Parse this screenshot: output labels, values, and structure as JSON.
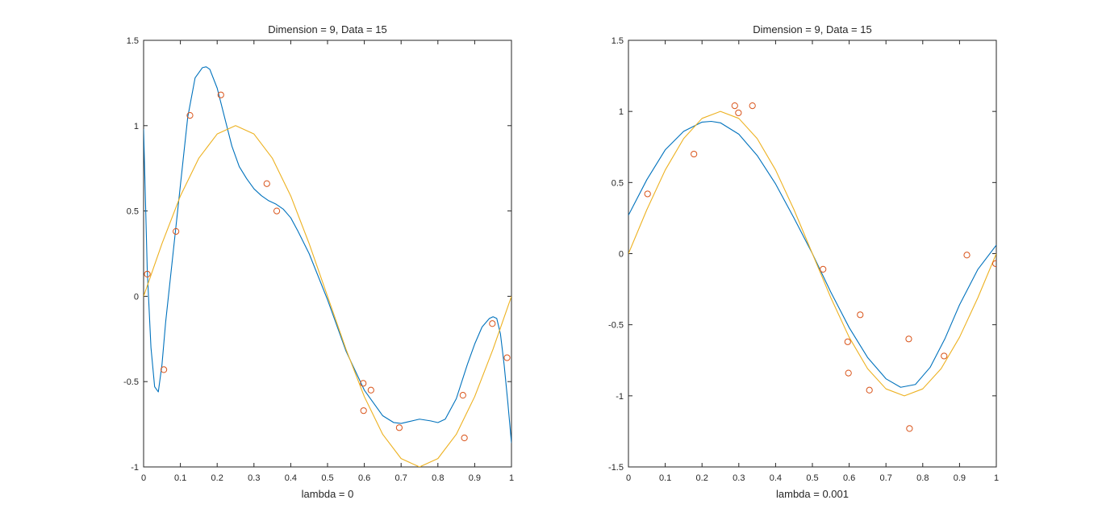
{
  "chart_data": [
    {
      "type": "line",
      "title": "Dimension = 9, Data = 15",
      "xlabel": "lambda = 0",
      "ylabel": "",
      "xlim": [
        0,
        1
      ],
      "ylim": [
        -1,
        1.5
      ],
      "xticks": [
        0,
        0.1,
        0.2,
        0.3,
        0.4,
        0.5,
        0.6,
        0.7,
        0.8,
        0.9,
        1
      ],
      "xtick_labels": [
        "0",
        "0.1",
        "0.2",
        "0.3",
        "0.4",
        "0.5",
        "0.6",
        "0.7",
        "0.8",
        "0.9",
        "1"
      ],
      "yticks": [
        -1,
        -0.5,
        0,
        0.5,
        1,
        1.5
      ],
      "ytick_labels": [
        "-1",
        "-0.5",
        "0",
        "0.5",
        "1",
        "1.5"
      ],
      "grid": false,
      "series": [
        {
          "kind": "line",
          "color": "#0072BD",
          "x": [
            0,
            0.01,
            0.02,
            0.03,
            0.04,
            0.05,
            0.06,
            0.08,
            0.1,
            0.12,
            0.14,
            0.16,
            0.17,
            0.18,
            0.2,
            0.22,
            0.24,
            0.26,
            0.28,
            0.3,
            0.32,
            0.34,
            0.36,
            0.38,
            0.4,
            0.42,
            0.45,
            0.5,
            0.55,
            0.6,
            0.65,
            0.68,
            0.7,
            0.72,
            0.75,
            0.78,
            0.8,
            0.82,
            0.85,
            0.88,
            0.9,
            0.92,
            0.94,
            0.95,
            0.96,
            0.97,
            0.98,
            0.99,
            1.0
          ],
          "y": [
            0.98,
            0.15,
            -0.3,
            -0.53,
            -0.56,
            -0.4,
            -0.15,
            0.25,
            0.65,
            1.05,
            1.28,
            1.34,
            1.345,
            1.33,
            1.22,
            1.05,
            0.88,
            0.76,
            0.69,
            0.63,
            0.59,
            0.56,
            0.54,
            0.51,
            0.46,
            0.38,
            0.25,
            -0.02,
            -0.32,
            -0.55,
            -0.7,
            -0.74,
            -0.745,
            -0.735,
            -0.72,
            -0.73,
            -0.74,
            -0.72,
            -0.6,
            -0.4,
            -0.28,
            -0.18,
            -0.13,
            -0.12,
            -0.13,
            -0.22,
            -0.4,
            -0.62,
            -0.86
          ]
        },
        {
          "kind": "line",
          "color": "#EDB120",
          "x": [
            0,
            0.05,
            0.1,
            0.15,
            0.2,
            0.25,
            0.3,
            0.35,
            0.4,
            0.45,
            0.5,
            0.55,
            0.6,
            0.65,
            0.7,
            0.75,
            0.8,
            0.85,
            0.9,
            0.95,
            1.0
          ],
          "y": [
            0,
            0.309,
            0.588,
            0.809,
            0.951,
            1.0,
            0.951,
            0.809,
            0.588,
            0.309,
            0,
            -0.309,
            -0.588,
            -0.809,
            -0.951,
            -1.0,
            -0.951,
            -0.809,
            -0.588,
            -0.309,
            0
          ]
        },
        {
          "kind": "scatter",
          "color": "#D95319",
          "x": [
            0.01,
            0.055,
            0.088,
            0.126,
            0.21,
            0.335,
            0.362,
            0.597,
            0.598,
            0.618,
            0.695,
            0.868,
            0.872,
            0.948,
            0.988
          ],
          "y": [
            0.13,
            -0.43,
            0.38,
            1.06,
            1.18,
            0.66,
            0.5,
            -0.51,
            -0.67,
            -0.55,
            -0.77,
            -0.58,
            -0.83,
            -0.16,
            -0.36
          ]
        }
      ]
    },
    {
      "type": "line",
      "title": "Dimension = 9, Data = 15",
      "xlabel": "lambda = 0.001",
      "ylabel": "",
      "xlim": [
        0,
        1
      ],
      "ylim": [
        -1.5,
        1.5
      ],
      "xticks": [
        0,
        0.1,
        0.2,
        0.3,
        0.4,
        0.5,
        0.6,
        0.7,
        0.8,
        0.9,
        1
      ],
      "xtick_labels": [
        "0",
        "0.1",
        "0.2",
        "0.3",
        "0.4",
        "0.5",
        "0.6",
        "0.7",
        "0.8",
        "0.9",
        "1"
      ],
      "yticks": [
        -1.5,
        -1,
        -0.5,
        0,
        0.5,
        1,
        1.5
      ],
      "ytick_labels": [
        "-1.5",
        "-1",
        "-0.5",
        "0",
        "0.5",
        "1",
        "1.5"
      ],
      "grid": false,
      "series": [
        {
          "kind": "line",
          "color": "#0072BD",
          "x": [
            0,
            0.05,
            0.1,
            0.15,
            0.2,
            0.225,
            0.25,
            0.3,
            0.35,
            0.4,
            0.45,
            0.5,
            0.55,
            0.6,
            0.65,
            0.7,
            0.74,
            0.78,
            0.82,
            0.86,
            0.9,
            0.95,
            1.0
          ],
          "y": [
            0.27,
            0.52,
            0.73,
            0.86,
            0.925,
            0.93,
            0.92,
            0.84,
            0.69,
            0.49,
            0.25,
            0.0,
            -0.27,
            -0.52,
            -0.73,
            -0.88,
            -0.94,
            -0.92,
            -0.8,
            -0.6,
            -0.36,
            -0.11,
            0.06
          ]
        },
        {
          "kind": "line",
          "color": "#EDB120",
          "x": [
            0,
            0.05,
            0.1,
            0.15,
            0.2,
            0.25,
            0.3,
            0.35,
            0.4,
            0.45,
            0.5,
            0.55,
            0.6,
            0.65,
            0.7,
            0.75,
            0.8,
            0.85,
            0.9,
            0.95,
            1.0
          ],
          "y": [
            0,
            0.309,
            0.588,
            0.809,
            0.951,
            1.0,
            0.951,
            0.809,
            0.588,
            0.309,
            0,
            -0.309,
            -0.588,
            -0.809,
            -0.951,
            -1.0,
            -0.951,
            -0.809,
            -0.588,
            -0.309,
            0
          ]
        },
        {
          "kind": "scatter",
          "color": "#D95319",
          "x": [
            0.052,
            0.178,
            0.289,
            0.299,
            0.337,
            0.529,
            0.596,
            0.598,
            0.63,
            0.655,
            0.762,
            0.764,
            0.858,
            0.92,
            0.998
          ],
          "y": [
            0.42,
            0.7,
            1.04,
            0.99,
            1.04,
            -0.11,
            -0.62,
            -0.84,
            -0.43,
            -0.96,
            -0.6,
            -1.23,
            -0.72,
            -0.01,
            -0.07
          ]
        }
      ]
    }
  ]
}
